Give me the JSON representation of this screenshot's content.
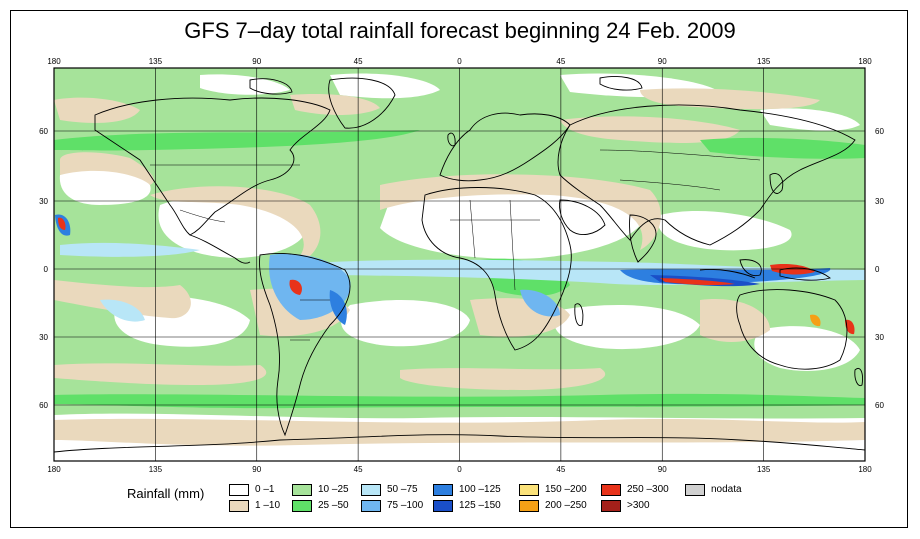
{
  "title": "GFS 7–day total rainfall forecast beginning 24 Feb. 2009",
  "axes": {
    "top_lon_labels": [
      "180",
      "135",
      "90",
      "45",
      "0",
      "45",
      "90",
      "135",
      "180"
    ],
    "bottom_lon_labels": [
      "180",
      "135",
      "90",
      "45",
      "0",
      "45",
      "90",
      "135",
      "180"
    ],
    "lat_labels": [
      "60",
      "30",
      "0",
      "30",
      "60"
    ]
  },
  "legend": {
    "title": "Rainfall (mm)",
    "items": [
      {
        "label": "0 –1",
        "color": "#ffffff"
      },
      {
        "label": "1 –10",
        "color": "#ead9bd"
      },
      {
        "label": "10 –25",
        "color": "#a6e39a"
      },
      {
        "label": "25 –50",
        "color": "#5fe068"
      },
      {
        "label": "50 –75",
        "color": "#b8e6f7"
      },
      {
        "label": "75 –100",
        "color": "#6fb6f0"
      },
      {
        "label": "100 –125",
        "color": "#2d7fe0"
      },
      {
        "label": "125 –150",
        "color": "#1a4fc8"
      },
      {
        "label": "150 –200",
        "color": "#fbe27a"
      },
      {
        "label": "200 –250",
        "color": "#f5a016"
      },
      {
        "label": "250 –300",
        "color": "#e8331a"
      },
      {
        "label": ">300",
        "color": "#a4201a"
      },
      {
        "label": "nodata",
        "color": "#d0d0d0"
      }
    ]
  }
}
